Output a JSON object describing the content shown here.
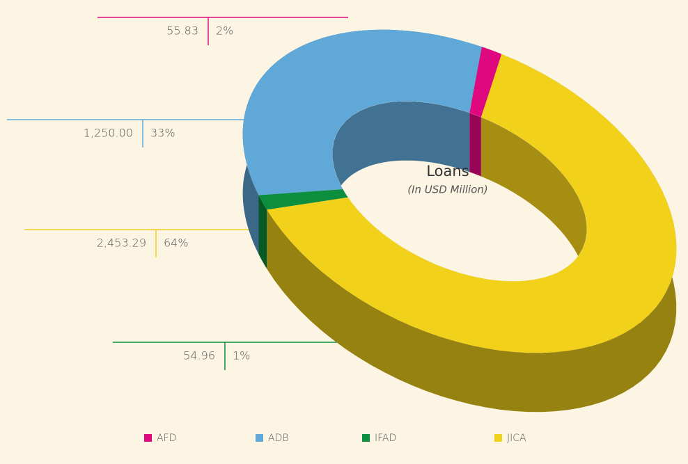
{
  "chart_data": {
    "type": "pie",
    "title": "Loans",
    "subtitle": "(In USD Million)",
    "categories": [
      "AFD",
      "ADB",
      "IFAD",
      "JICA"
    ],
    "values": [
      55.83,
      1250.0,
      54.96,
      2453.29
    ],
    "value_labels": [
      "55.83",
      "1,250.00",
      "54.96",
      "2,453.29"
    ],
    "percent_labels": [
      "2%",
      "33%",
      "1%",
      "64%"
    ],
    "colors": [
      "#e0087f",
      "#5fa8d8",
      "#0b8f3e",
      "#f2d11a"
    ],
    "legend": "bottom"
  }
}
